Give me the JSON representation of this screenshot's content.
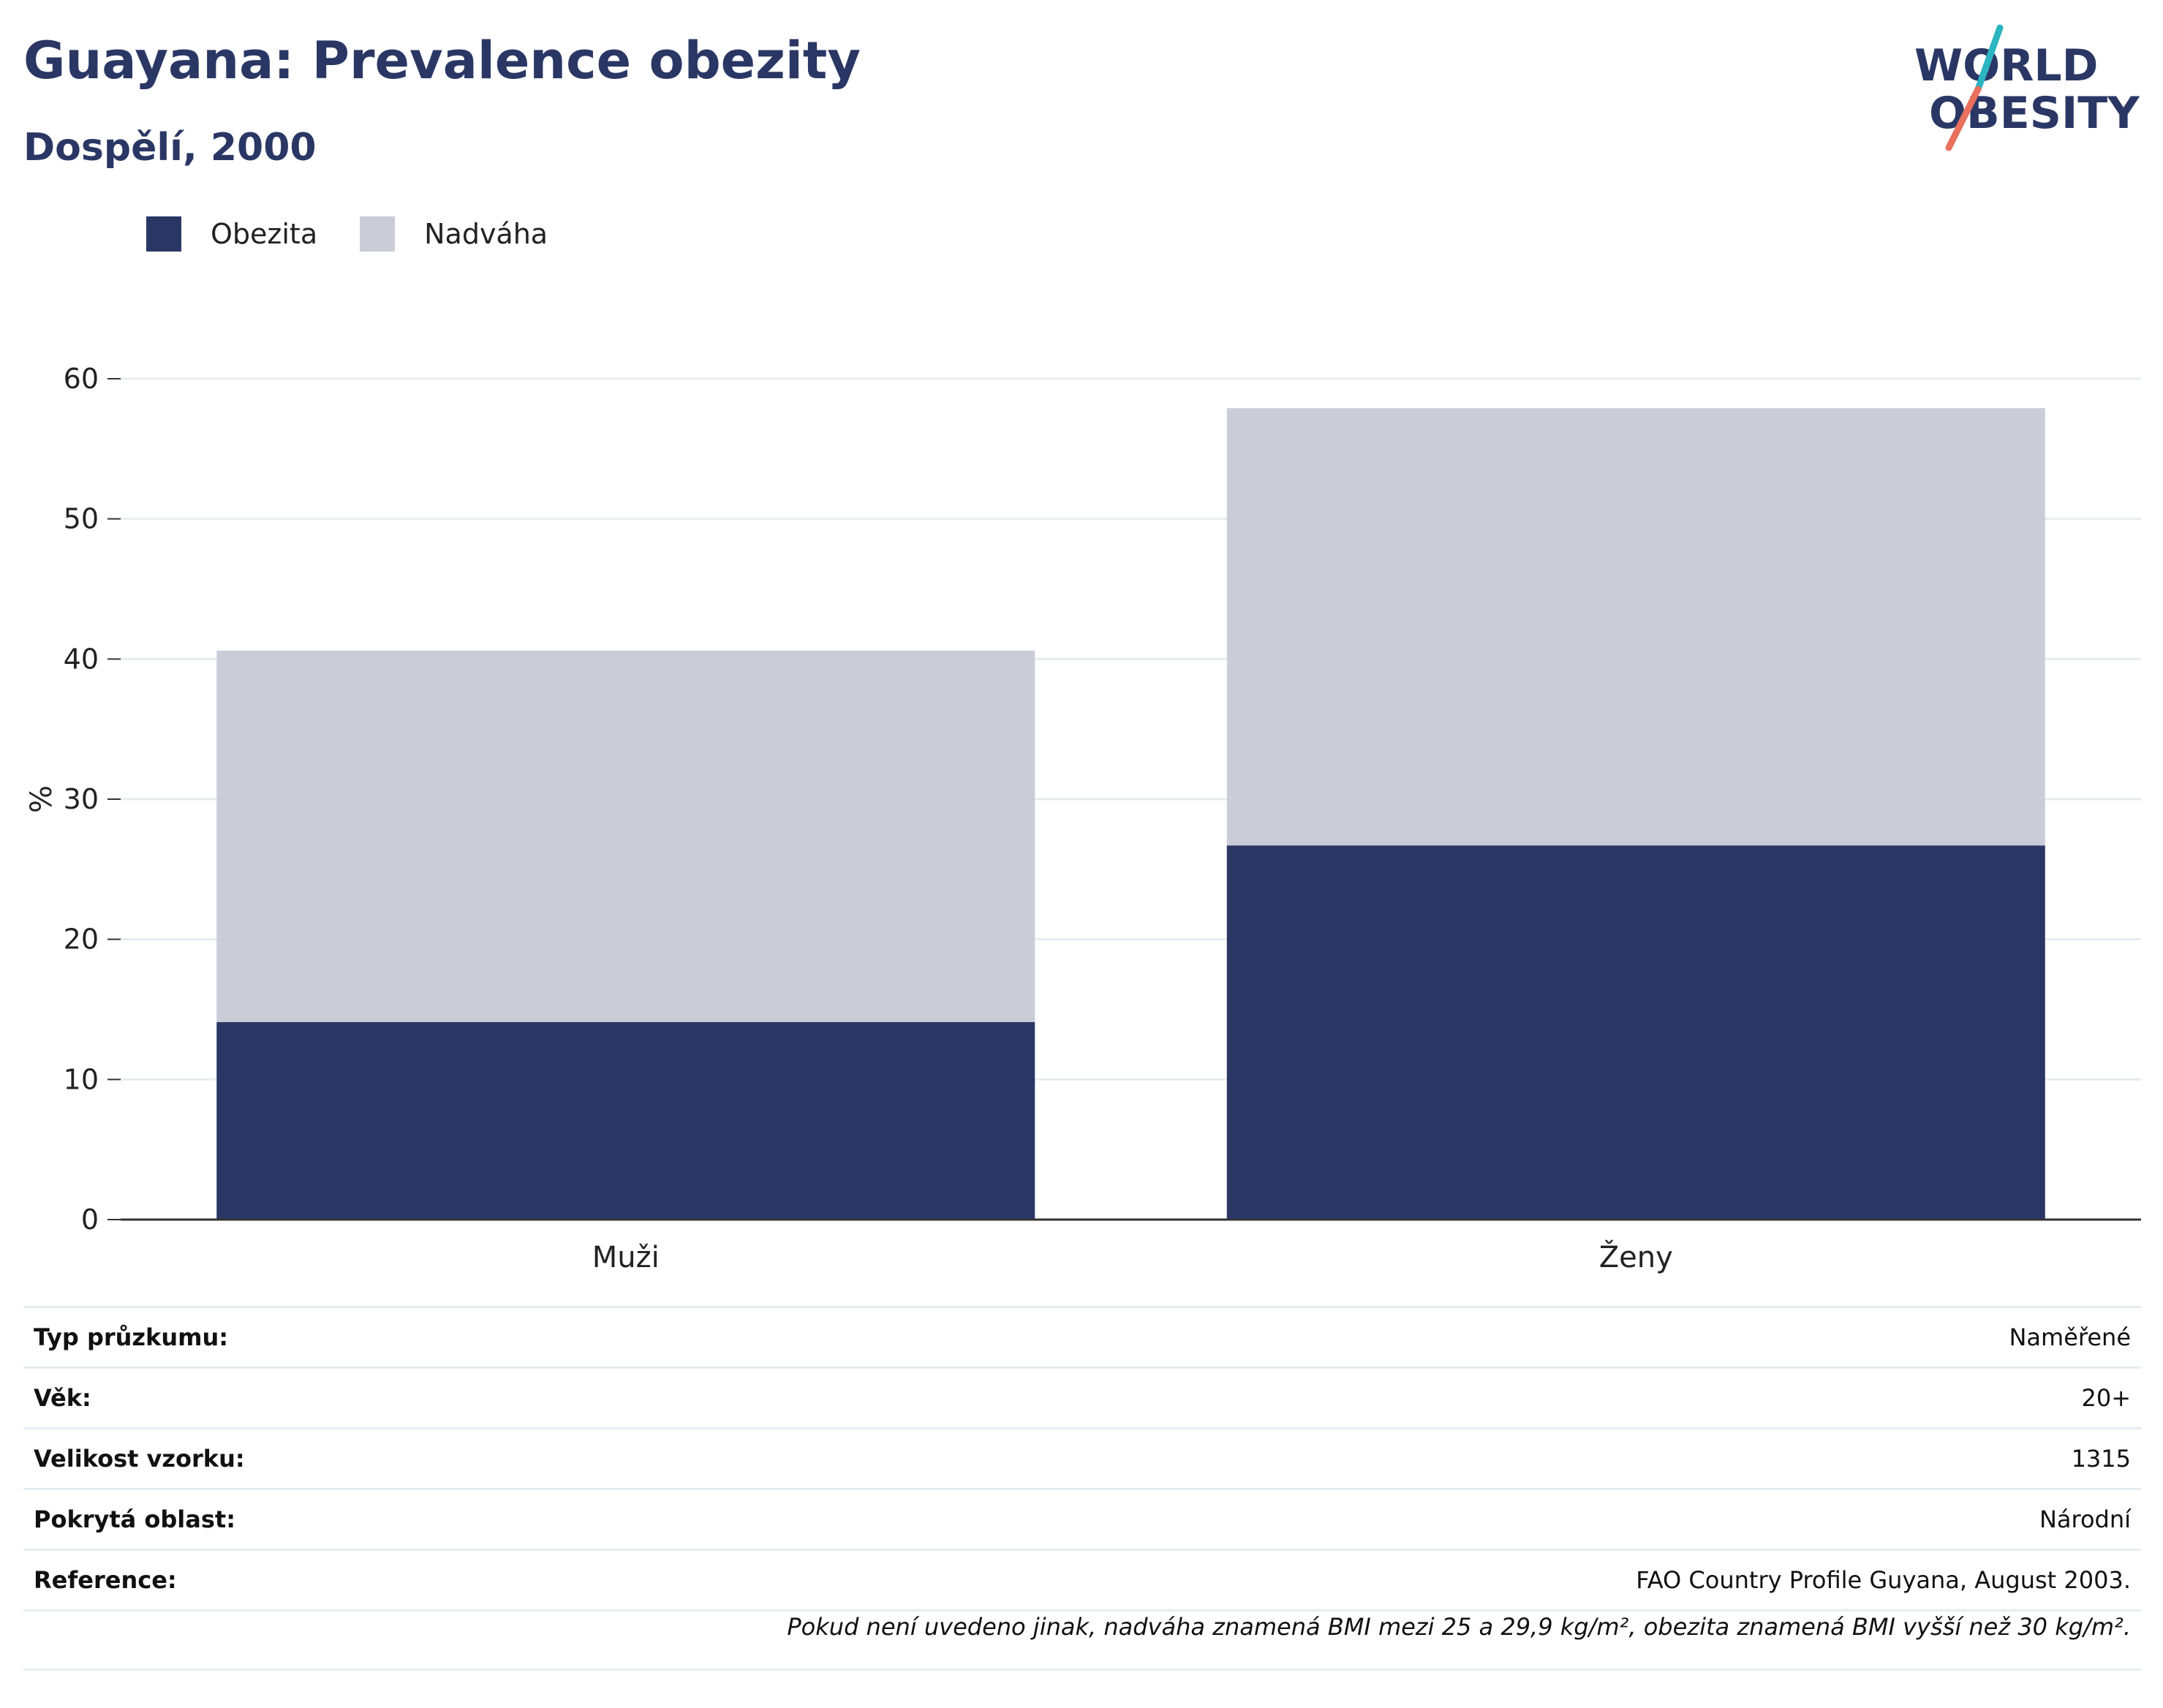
{
  "header": {
    "title": "Guayana: Prevalence obezity",
    "subtitle": "Dospělí, 2000"
  },
  "logo": {
    "line1": "WORLD",
    "line2": "OBESITY",
    "brand_color": "#2a3765",
    "accent_teal": "#2ab5c0",
    "accent_coral": "#e8705d"
  },
  "legend": [
    {
      "label": "Obezita",
      "color": "#2a3765"
    },
    {
      "label": "Nadváha",
      "color": "#cacdd8"
    }
  ],
  "chart_data": {
    "type": "bar",
    "stacked": true,
    "categories": [
      "Muži",
      "Ženy"
    ],
    "series": [
      {
        "name": "Obezita",
        "color": "#2a3765",
        "values": [
          14.1,
          26.7
        ]
      },
      {
        "name": "Nadváha",
        "color": "#cacdd8",
        "values": [
          26.5,
          31.2
        ]
      }
    ],
    "ylabel": "%",
    "ylim": [
      0,
      60
    ],
    "yticks": [
      0,
      10,
      20,
      30,
      40,
      50,
      60
    ],
    "grid": true,
    "legend_position": "top-left"
  },
  "meta": [
    {
      "label": "Typ průzkumu:",
      "value": "Naměřené"
    },
    {
      "label": "Věk:",
      "value": "20+"
    },
    {
      "label": "Velikost vzorku:",
      "value": "1315"
    },
    {
      "label": "Pokrytá oblast:",
      "value": "Národní"
    },
    {
      "label": "Reference:",
      "value": "FAO Country Profile Guyana, August 2003."
    }
  ],
  "footnote": "Pokud není uvedeno jinak, nadváha znamená BMI mezi 25 a 29,9 kg/m², obezita znamená BMI vyšší než 30 kg/m²."
}
